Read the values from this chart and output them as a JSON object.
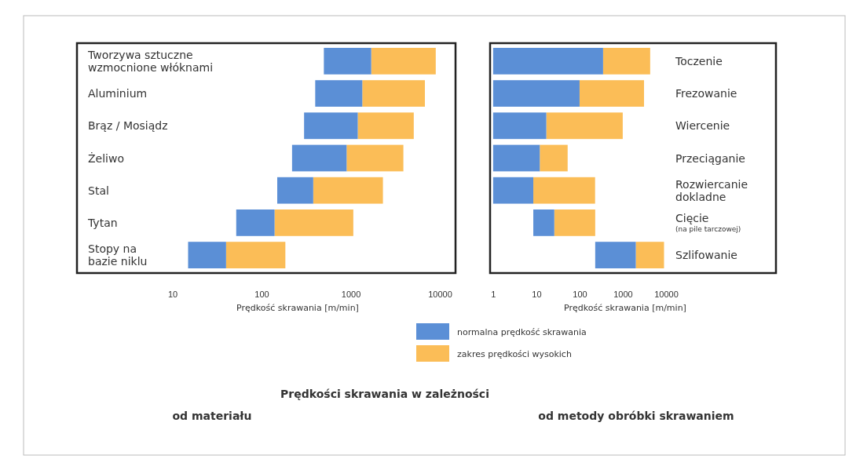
{
  "chart_data": [
    {
      "type": "bar",
      "orientation": "horizontal",
      "log": "x",
      "title": "Prędkości skrawania w zależności",
      "subtitle": "od materiału",
      "xlabel": "Prędkość skrawania [m/min]",
      "categories": [
        "Tworzywa sztuczne\nwzmocnione włóknami",
        "Aluminium",
        "Brąz / Mosiądz",
        "Żeliwo",
        "Stal",
        "Tytan",
        "Stopy na\nbazie niklu"
      ],
      "series": [
        {
          "name": "normalna prędkość skrawania",
          "color": "#5b8fd6",
          "base": [
            500,
            400,
            300,
            220,
            150,
            52,
            15
          ],
          "values": [
            1200,
            950,
            900,
            680,
            230,
            88,
            25
          ]
        },
        {
          "name": "zakres prędkości wysokich",
          "color": "#fbbd57",
          "base": [
            1700,
            1350,
            1200,
            900,
            380,
            140,
            40
          ],
          "values": [
            7300,
            5450,
            3900,
            3000,
            1920,
            930,
            145
          ]
        }
      ],
      "xlim": [
        0.85,
        15000
      ],
      "xticks": [
        10,
        100,
        1000,
        10000
      ],
      "legend": "bottom"
    },
    {
      "type": "bar",
      "orientation": "horizontal",
      "log": "x",
      "subtitle": "od metody obróbki skrawaniem",
      "xlabel": "Prędkość skrawania [m/min]",
      "categories": [
        "Toczenie",
        "Frezowanie",
        "Wiercenie",
        "Przeciąganie",
        "Rozwiercanie\ndokladne",
        "Cięcie\n(na pile tarczowej)",
        "Szlifowanie"
      ],
      "series": [
        {
          "color": "#5b8fd6",
          "base": [
            1,
            1,
            1,
            1,
            1,
            8.5,
            230
          ],
          "values": [
            349,
            99,
            16,
            11,
            7.5,
            17.5,
            1770
          ]
        },
        {
          "color": "#fbbd57",
          "base": [
            350,
            100,
            17,
            12,
            8.5,
            26,
            2000
          ],
          "values": [
            3950,
            3000,
            980,
            41,
            220,
            204,
            7000
          ]
        }
      ],
      "xlim": [
        0.85,
        3500000
      ],
      "xticks": [
        1,
        10,
        100,
        1000,
        10000
      ]
    }
  ]
}
